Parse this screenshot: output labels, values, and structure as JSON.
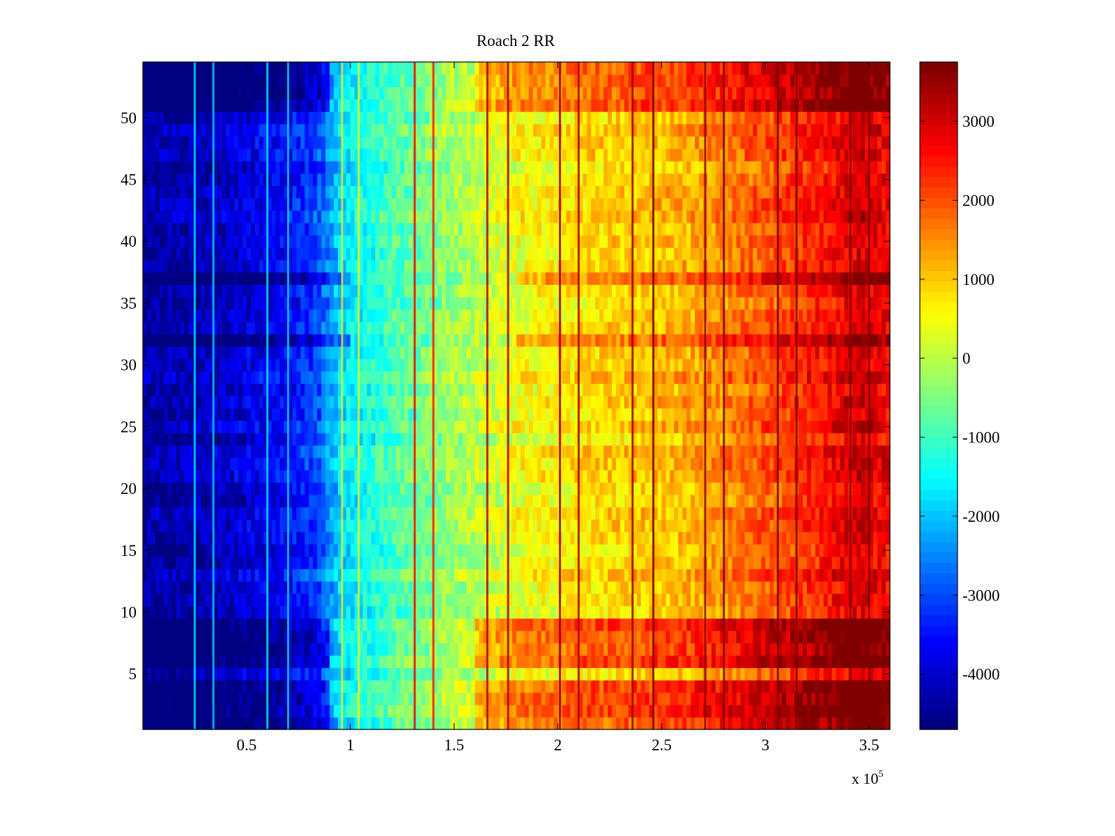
{
  "chart_data": {
    "type": "heatmap",
    "title": "Roach 2 RR",
    "xlabel": "",
    "ylabel": "",
    "x_multiplier_label": "x 10",
    "x_multiplier_exponent": "5",
    "xlim": [
      0,
      3.6
    ],
    "ylim": [
      0.5,
      54.5
    ],
    "x_tick_values": [
      0.5,
      1,
      1.5,
      2,
      2.5,
      3,
      3.5
    ],
    "x_tick_labels": [
      "0.5",
      "1",
      "1.5",
      "2",
      "2.5",
      "3",
      "3.5"
    ],
    "y_tick_values": [
      5,
      10,
      15,
      20,
      25,
      30,
      35,
      40,
      45,
      50
    ],
    "y_tick_labels": [
      "5",
      "10",
      "15",
      "20",
      "25",
      "30",
      "35",
      "40",
      "45",
      "50"
    ],
    "rows": 54,
    "colormap": "jet",
    "colorbar": {
      "clim": [
        -4700,
        3750
      ],
      "tick_values": [
        3000,
        2000,
        1000,
        0,
        -1000,
        -2000,
        -3000,
        -4000
      ],
      "tick_labels": [
        "3000",
        "2000",
        "1000",
        "0",
        "-1000",
        "-2000",
        "-3000",
        "-4000"
      ],
      "levels": 64
    },
    "value_profile_x": [
      0,
      0.3,
      0.7,
      0.85,
      0.95,
      1.2,
      1.5,
      1.8,
      2.2,
      2.6,
      2.8,
      3.0,
      3.3,
      3.45,
      3.6
    ],
    "value_profile_v": [
      -4400,
      -4200,
      -3600,
      -3000,
      -1800,
      -900,
      -200,
      500,
      900,
      1200,
      1600,
      2000,
      2600,
      3100,
      2700
    ],
    "hot_rows": [
      1,
      2,
      3,
      4,
      6,
      7,
      8,
      9,
      51,
      52,
      53,
      54
    ],
    "cool_rows": [
      32,
      37
    ],
    "stripes": [
      {
        "x": 0.25,
        "value": -1600,
        "kind": "bright-line"
      },
      {
        "x": 0.34,
        "value": -1800,
        "kind": "bright-line"
      },
      {
        "x": 0.6,
        "value": -1500,
        "kind": "bright-line"
      },
      {
        "x": 0.7,
        "value": -1700,
        "kind": "bright-line"
      },
      {
        "x": 0.96,
        "value": 600,
        "kind": "bright-line"
      },
      {
        "x": 1.04,
        "value": 700,
        "kind": "bright-line"
      },
      {
        "x": 1.31,
        "value": 2800,
        "kind": "hot-line"
      },
      {
        "x": 1.4,
        "value": 2600,
        "kind": "hot-line"
      },
      {
        "x": 1.66,
        "value": 3300,
        "kind": "hot-line"
      },
      {
        "x": 1.76,
        "value": 3300,
        "kind": "hot-line"
      },
      {
        "x": 2.01,
        "value": 3500,
        "kind": "hot-line"
      },
      {
        "x": 2.1,
        "value": 3400,
        "kind": "hot-line"
      },
      {
        "x": 2.36,
        "value": 3500,
        "kind": "hot-line"
      },
      {
        "x": 2.46,
        "value": 3700,
        "kind": "hot-line"
      },
      {
        "x": 2.71,
        "value": 3600,
        "kind": "hot-line"
      },
      {
        "x": 2.8,
        "value": 3700,
        "kind": "hot-line"
      },
      {
        "x": 3.06,
        "value": 3700,
        "kind": "hot-line"
      },
      {
        "x": 3.15,
        "value": 3700,
        "kind": "hot-line"
      },
      {
        "x": 3.41,
        "value": 3750,
        "kind": "hot-line"
      },
      {
        "x": 3.5,
        "value": 3750,
        "kind": "hot-line"
      }
    ]
  }
}
